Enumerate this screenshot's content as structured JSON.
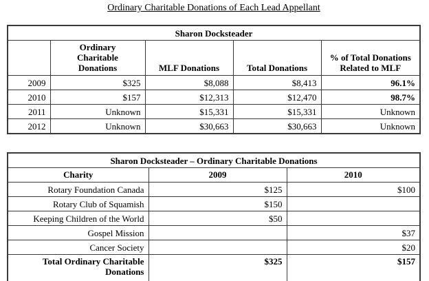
{
  "page": {
    "title": "Ordinary Charitable Donations of Each Lead Appellant"
  },
  "colors": {
    "page_background": "#ffffff",
    "text": "#000000",
    "table_border": "#3a3a3a"
  },
  "t1": {
    "title": "Sharon Docksteader",
    "headers": {
      "year": "",
      "ocd": "Ordinary Charitable Donations",
      "mlf": "MLF Donations",
      "total": "Total Donations",
      "pct": "% of Total Donations Related to MLF"
    },
    "rows": [
      {
        "year": "2009",
        "ocd": "$325",
        "mlf": "$8,088",
        "total": "$8,413",
        "pct": "96.1%"
      },
      {
        "year": "2010",
        "ocd": "$157",
        "mlf": "$12,313",
        "total": "$12,470",
        "pct": "98.7%"
      },
      {
        "year": "2011",
        "ocd": "Unknown",
        "mlf": "$15,331",
        "total": "$15,331",
        "pct": "Unknown"
      },
      {
        "year": "2012",
        "ocd": "Unknown",
        "mlf": "$30,663",
        "total": "$30,663",
        "pct": "Unknown"
      }
    ]
  },
  "t2": {
    "title": "Sharon Docksteader – Ordinary Charitable Donations",
    "headers": {
      "charity": "Charity",
      "y2009": "2009",
      "y2010": "2010"
    },
    "rows": [
      {
        "charity": "Rotary Foundation Canada",
        "y2009": "$125",
        "y2010": "$100"
      },
      {
        "charity": "Rotary Club of Squamish",
        "y2009": "$150",
        "y2010": ""
      },
      {
        "charity": "Keeping Children of the World",
        "y2009": "$50",
        "y2010": ""
      },
      {
        "charity": "Gospel Mission",
        "y2009": "",
        "y2010": "$37"
      },
      {
        "charity": "Cancer Society",
        "y2009": "",
        "y2010": "$20"
      }
    ],
    "total": {
      "label": "Total Ordinary Charitable Donations",
      "y2009": "$325",
      "y2010": "$157"
    }
  }
}
